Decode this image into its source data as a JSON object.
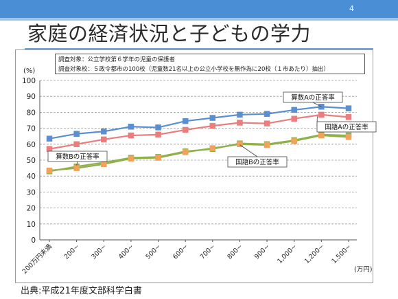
{
  "slide": {
    "page_number": "4",
    "title": "家庭の経済状況と子どもの学力",
    "source": "出典:平成21年度文部科学白書"
  },
  "note": {
    "line1": "調査対象：公立学校第６学年の児童の保護者",
    "line2": "調査対象校：５政令都市の100校（児童数21名以上の公立小学校を無作為に20校（１市あたり）抽出）"
  },
  "colors": {
    "topbar": "#4a8fd6",
    "math_a": "#5b8fd0",
    "japanese_a": "#ea7d7d",
    "math_b": "#f2a25a",
    "japanese_b": "#8fb04a"
  },
  "chart_data": {
    "type": "line",
    "title": "",
    "ylabel": "(%)",
    "xlabel": "(万円)",
    "ylim": [
      0,
      100
    ],
    "yticks": [
      0,
      10,
      20,
      30,
      40,
      50,
      60,
      70,
      80,
      90,
      100
    ],
    "grid": true,
    "categories": [
      "200万円未満",
      "200~",
      "300~",
      "400~",
      "500~",
      "600~",
      "700~",
      "800~",
      "900~",
      "1,000~",
      "1,200~",
      "1,500~"
    ],
    "series": [
      {
        "name": "算数Aの正答率",
        "color": "#5b8fd0",
        "marker": "#5b8fd0",
        "values": [
          63.5,
          66.5,
          68.0,
          71.0,
          70.5,
          74.5,
          76.5,
          78.5,
          79.0,
          81.5,
          83.5,
          82.5
        ]
      },
      {
        "name": "国語Aの正答率",
        "color": "#ea7d7d",
        "marker": "#ea7d7d",
        "values": [
          57.0,
          60.0,
          63.0,
          65.5,
          66.0,
          69.0,
          71.5,
          73.5,
          73.0,
          76.0,
          78.5,
          77.0
        ]
      },
      {
        "name": "国語Bの正答率",
        "color": "#8fb04a",
        "marker": "#8fb04a",
        "values": [
          43.0,
          46.0,
          48.5,
          51.5,
          52.0,
          55.5,
          57.0,
          60.5,
          60.0,
          62.5,
          66.0,
          65.5
        ]
      },
      {
        "name": "算数Bの正答率",
        "color": "#8fb04a",
        "marker": "#f2a25a",
        "values": [
          43.5,
          45.0,
          47.5,
          51.0,
          51.5,
          55.0,
          57.5,
          60.0,
          59.5,
          62.0,
          65.5,
          64.5
        ]
      }
    ],
    "annotations": [
      {
        "text": "算数Aの正答率",
        "series": "算数Aの正答率"
      },
      {
        "text": "国語Aの正答率",
        "series": "国語Aの正答率"
      },
      {
        "text": "算数Bの正答率",
        "series": "算数Bの正答率"
      },
      {
        "text": "国語Bの正答率",
        "series": "国語Bの正答率"
      }
    ]
  }
}
